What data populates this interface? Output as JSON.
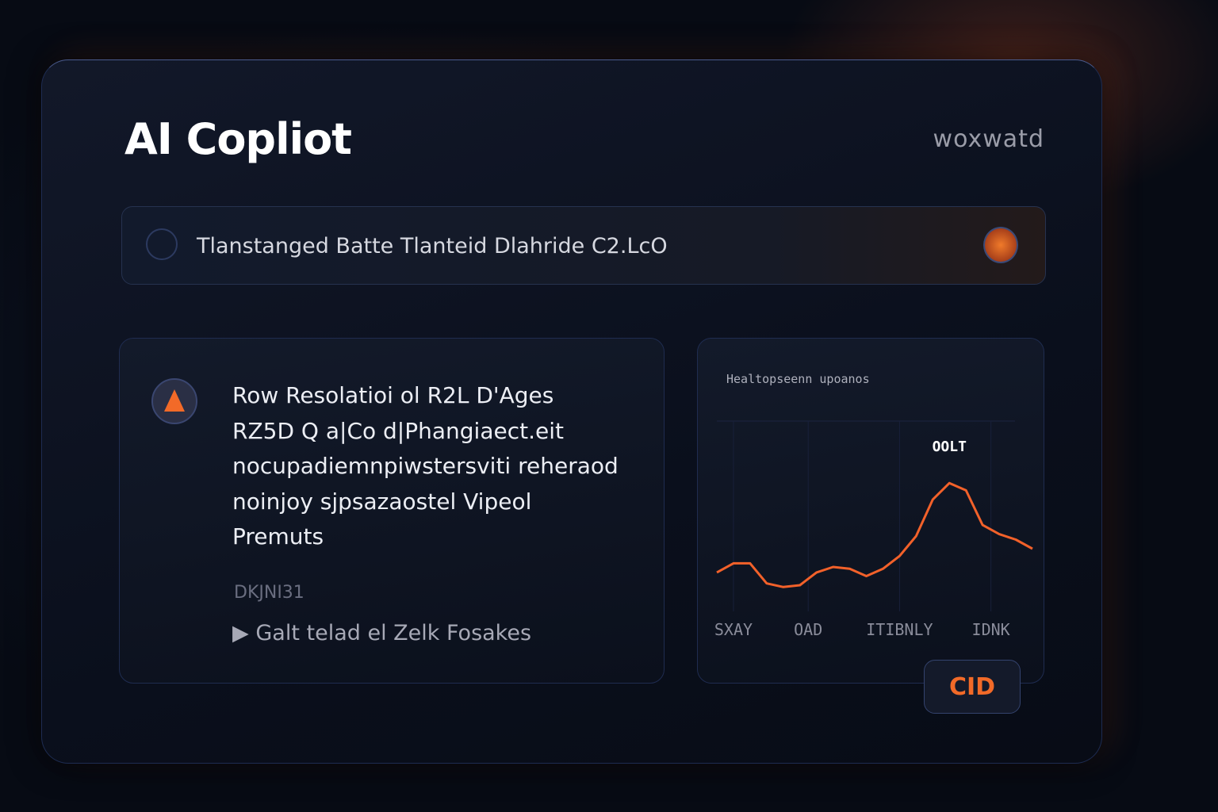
{
  "header": {
    "title": "AI Copliot",
    "badge": "woxwatd"
  },
  "search": {
    "text": "Tlanstanged Batte Tlanteid Dlahride C2.LcO"
  },
  "alert": {
    "lines": [
      "Row Resolatioi ol R2L D'Ages",
      "RZ5D Q a|Co d|Phangiaect.eit",
      "nocupadiemnpiwstersviti reheraod",
      "noinjoy sjpsazaostel Vipeol",
      "Premuts"
    ],
    "meta": "DKJNI31",
    "link": "Galt telad el Zelk Fosakes"
  },
  "chart_data": {
    "type": "line",
    "title": "Healtopseenn upoanos",
    "annotation": "OOLT",
    "color": "#f2612a",
    "x": [
      0,
      1,
      2,
      3,
      4,
      5,
      6,
      7,
      8,
      9,
      10,
      11,
      12,
      13,
      14,
      15,
      16,
      17,
      18,
      19
    ],
    "values": [
      17,
      22,
      22,
      11,
      9,
      10,
      17,
      20,
      19,
      15,
      19,
      26,
      37,
      57,
      66,
      62,
      43,
      38,
      35,
      30
    ],
    "xlim": [
      0,
      19
    ],
    "ylim": [
      0,
      100
    ],
    "xticks": [
      {
        "value": 1,
        "label": "SXAY"
      },
      {
        "value": 5.5,
        "label": "OAD"
      },
      {
        "value": 11,
        "label": "ITIBNLY"
      },
      {
        "value": 16.5,
        "label": "IDNK"
      }
    ],
    "grid": true
  },
  "button": {
    "label": "CID"
  }
}
